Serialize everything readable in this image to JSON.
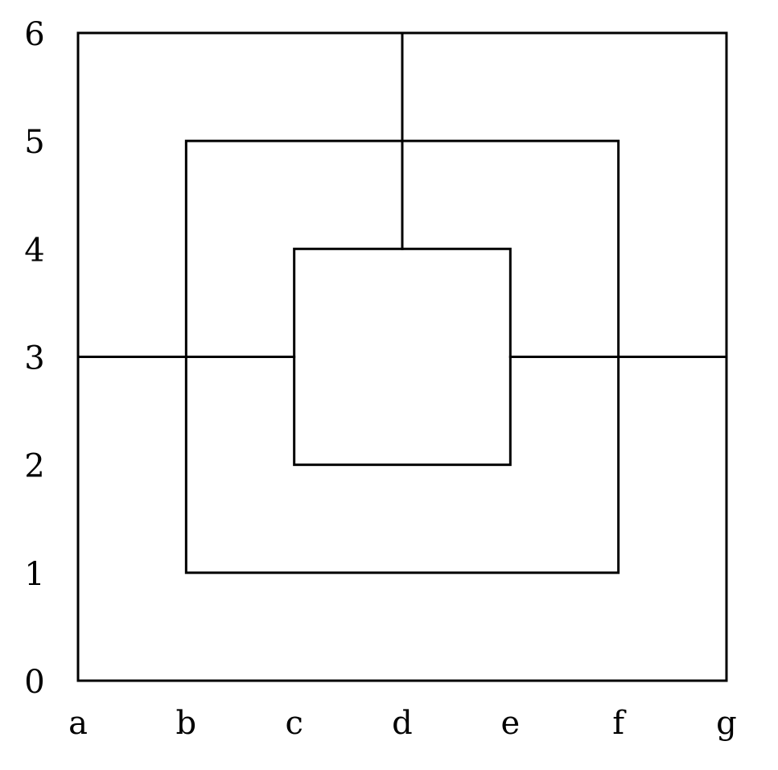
{
  "board": {
    "columns": [
      "a",
      "b",
      "c",
      "d",
      "e",
      "f",
      "g"
    ],
    "rows": [
      "0",
      "1",
      "2",
      "3",
      "4",
      "5",
      "6"
    ],
    "squares": [
      {
        "name": "outer",
        "from": [
          "a",
          "0"
        ],
        "to": [
          "g",
          "6"
        ]
      },
      {
        "name": "middle",
        "from": [
          "b",
          "1"
        ],
        "to": [
          "f",
          "5"
        ]
      },
      {
        "name": "inner",
        "from": [
          "c",
          "2"
        ],
        "to": [
          "e",
          "4"
        ]
      }
    ],
    "connectors": [
      {
        "name": "top",
        "from": [
          "d",
          "6"
        ],
        "to": [
          "d",
          "4"
        ]
      },
      {
        "name": "left",
        "from": [
          "a",
          "3"
        ],
        "to": [
          "c",
          "3"
        ]
      },
      {
        "name": "right",
        "from": [
          "e",
          "3"
        ],
        "to": [
          "g",
          "3"
        ]
      }
    ],
    "line_color": "#000000"
  }
}
